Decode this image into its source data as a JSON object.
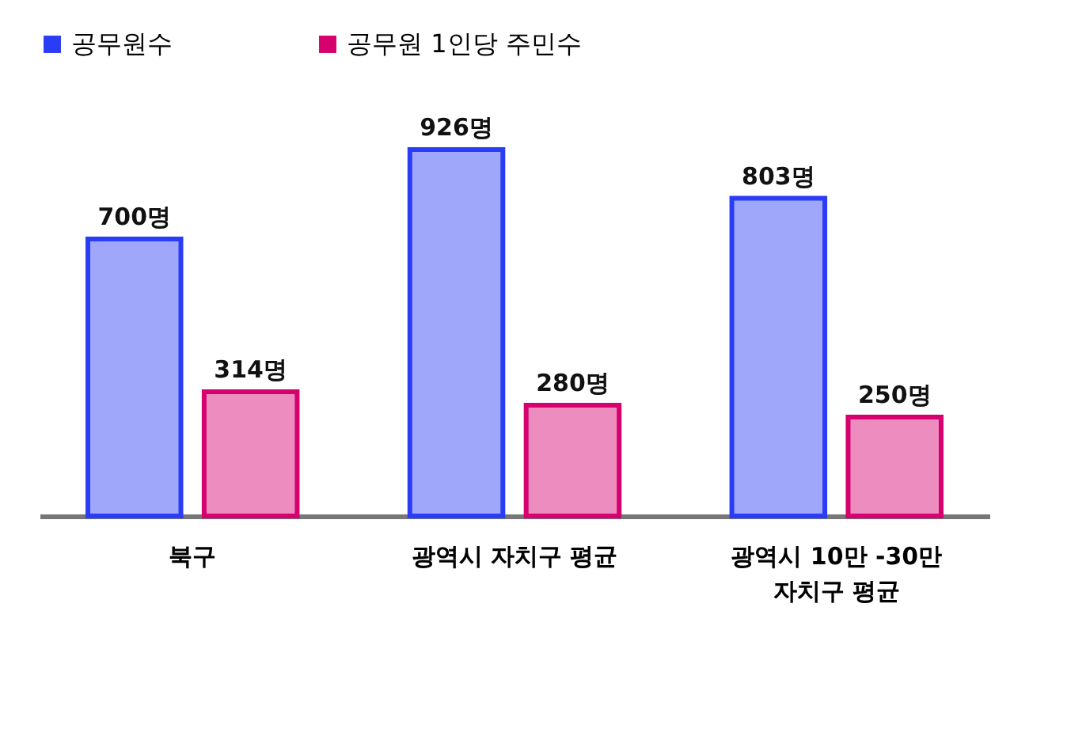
{
  "chart_data": {
    "type": "bar",
    "categories": [
      "북구",
      "광역시 자치구 평균",
      "광역시 10만 -30만\n자치구 평균"
    ],
    "series": [
      {
        "name": "공무원수",
        "color": "#2a3cf5",
        "values": [
          700,
          926,
          803
        ],
        "value_labels": [
          "700명",
          "926명",
          "803명"
        ]
      },
      {
        "name": "공무원 1인당 주민수",
        "color": "#d6006e",
        "values": [
          314,
          280,
          250
        ],
        "value_labels": [
          "314명",
          "280명",
          "250명"
        ]
      }
    ],
    "legend": "top"
  }
}
